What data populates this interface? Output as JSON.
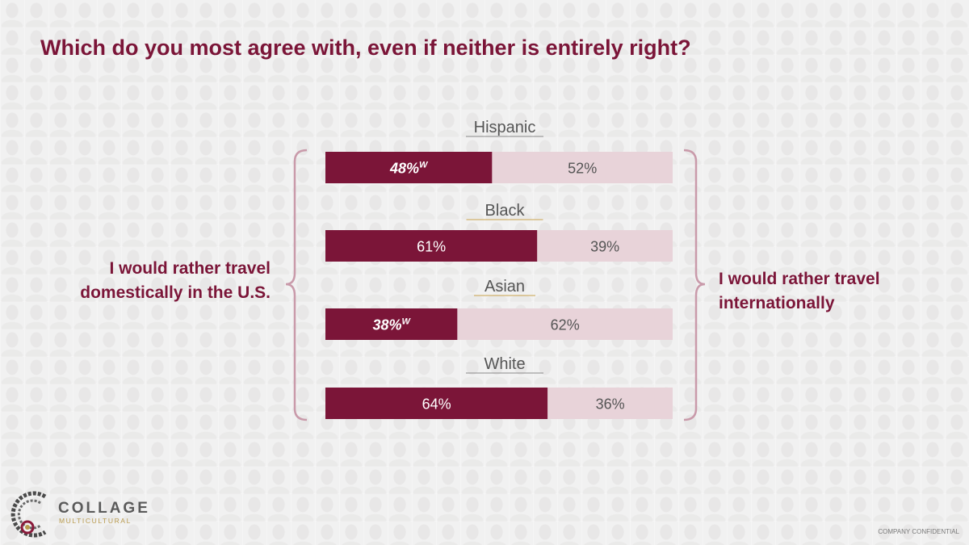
{
  "title": "Which do you most agree with, even if neither is entirely right?",
  "left_label": "I would rather travel domestically in the U.S.",
  "right_label": "I would rather travel internationally",
  "footer": {
    "confidential": "COMPANY CONFIDENTIAL"
  },
  "logo": {
    "name": "COLLAGE",
    "sub": "MULTICULTURAL"
  },
  "colors": {
    "domestic": "#7b1538",
    "international": "#e8d3d9",
    "title": "#7b1538",
    "brace": "#c99aaa"
  },
  "chart_data": {
    "type": "bar",
    "stacked": true,
    "orientation": "horizontal",
    "categories": [
      "Hispanic",
      "Black",
      "Asian",
      "White"
    ],
    "series": [
      {
        "values": [
          48,
          61,
          38,
          64
        ],
        "labels": [
          "48%",
          "61%",
          "38%",
          "64%"
        ],
        "superscripts": [
          "W",
          "",
          "W",
          ""
        ]
      },
      {
        "values": [
          52,
          39,
          62,
          36
        ],
        "labels": [
          "52%",
          "39%",
          "62%",
          "36%"
        ]
      }
    ],
    "xlim": [
      0,
      100
    ]
  }
}
